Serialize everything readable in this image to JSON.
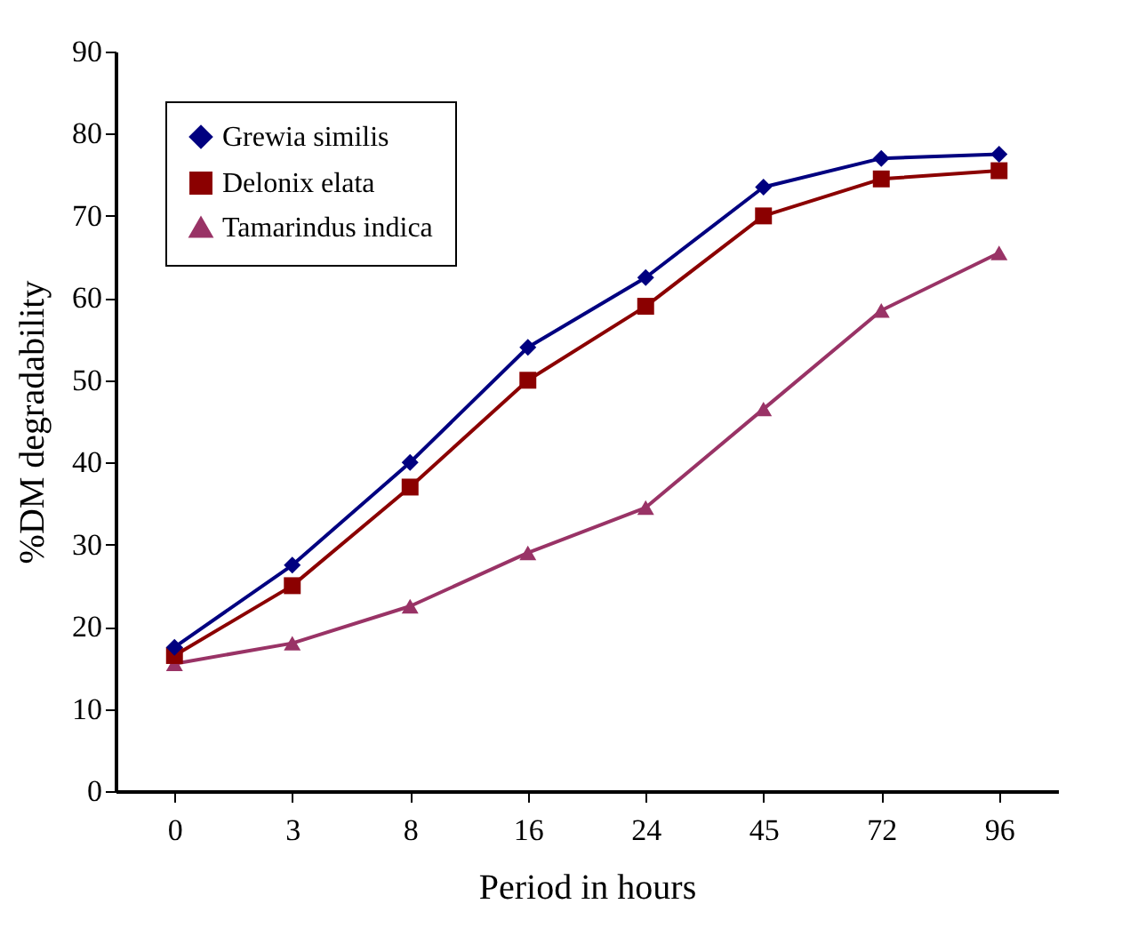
{
  "chart_data": {
    "type": "line",
    "xlabel": "Period in hours",
    "ylabel": "%DM degradability",
    "categories": [
      "0",
      "3",
      "8",
      "16",
      "24",
      "45",
      "72",
      "96"
    ],
    "series": [
      {
        "name": "Grewia similis",
        "color": "#000080",
        "marker": "diamond",
        "values": [
          17.5,
          27.5,
          40,
          54,
          62.5,
          73.5,
          77,
          77.5
        ]
      },
      {
        "name": "Delonix elata",
        "color": "#8b0000",
        "marker": "square",
        "values": [
          16.5,
          25,
          37,
          50,
          59,
          70,
          74.5,
          75.5
        ]
      },
      {
        "name": "Tamarindus indica",
        "color": "#993366",
        "marker": "triangle",
        "values": [
          15.5,
          18,
          22.5,
          29,
          34.5,
          46.5,
          58.5,
          65.5
        ]
      }
    ],
    "ylim": [
      0,
      90
    ],
    "yticks": [
      0,
      10,
      20,
      30,
      40,
      50,
      60,
      70,
      80,
      90
    ],
    "grid": false,
    "legend": "top left"
  }
}
